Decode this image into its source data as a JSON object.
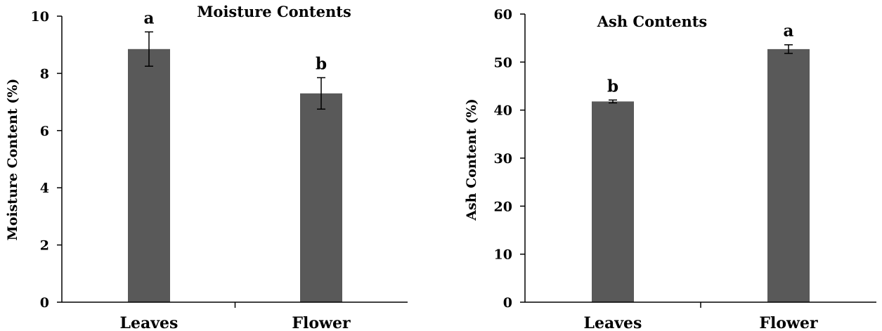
{
  "chart_data": [
    {
      "type": "bar",
      "title": "Moisture Contents",
      "ylabel": "Moisture Content (%)",
      "xlabel": "",
      "categories": [
        "Leaves",
        "Flower"
      ],
      "values": [
        8.85,
        7.3
      ],
      "error": [
        0.6,
        0.55
      ],
      "significance": [
        "a",
        "b"
      ],
      "ylim": [
        0,
        10
      ],
      "yticks": [
        0,
        2,
        4,
        6,
        8,
        10
      ],
      "bar_color": "#595959",
      "grid": false
    },
    {
      "type": "bar",
      "title": "Ash Contents",
      "ylabel": "Ash Content (%)",
      "xlabel": "",
      "categories": [
        "Leaves",
        "Flower"
      ],
      "values": [
        41.8,
        52.7
      ],
      "error": [
        0.3,
        0.9
      ],
      "significance": [
        "b",
        "a"
      ],
      "ylim": [
        0,
        60
      ],
      "yticks": [
        0,
        10,
        20,
        30,
        40,
        50,
        60
      ],
      "bar_color": "#595959",
      "grid": false
    }
  ]
}
